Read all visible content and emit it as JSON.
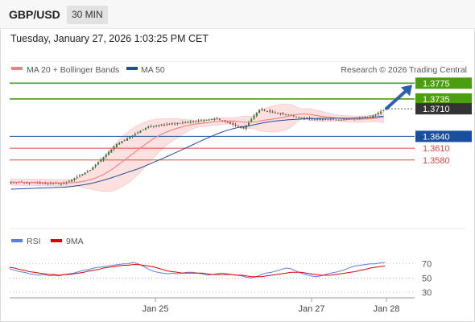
{
  "header": {
    "symbol": "GBP/USD",
    "timeframe": "30 MIN",
    "datetime": "Tuesday, January 27, 2026 1:03:25 PM CET"
  },
  "legend": {
    "bb_label": "MA 20 + Bollinger Bands",
    "ma50_label": "MA 50",
    "credit": "Research © 2026 Trading Central",
    "rsi_label": "RSI",
    "rsi_ma_label": "9MA"
  },
  "colors": {
    "resistance": "#4a9e10",
    "pivot": "#1a4fa0",
    "support": "#e04545",
    "last": "#333333",
    "candle_up": "#2e7d32",
    "candle_down": "#c62828",
    "ma20": "#f08080",
    "ma50": "#1f4e9a",
    "band_fill": "#fde0e0",
    "rsi": "#5b7fe0",
    "rsi_ma": "#e00000"
  },
  "chart_data": [
    {
      "type": "candlestick",
      "title": "GBP/USD",
      "ylim": [
        1.341,
        1.379
      ],
      "x_ticks": [
        "Jan 25",
        "Jan 27",
        "Jan 28"
      ],
      "levels": [
        {
          "label": "1.3775",
          "value": 1.3775,
          "kind": "resistance"
        },
        {
          "label": "1.3735",
          "value": 1.3735,
          "kind": "resistance"
        },
        {
          "label": "1.3710",
          "value": 1.371,
          "kind": "last"
        },
        {
          "label": "1.3640",
          "value": 1.364,
          "kind": "pivot"
        },
        {
          "label": "1.3610",
          "value": 1.361,
          "kind": "support"
        },
        {
          "label": "1.3580",
          "value": 1.358,
          "kind": "support"
        }
      ],
      "series": [
        {
          "name": "MA 20 + Bollinger Bands",
          "kind": "ma20_with_bands"
        },
        {
          "name": "MA 50",
          "kind": "ma50"
        }
      ],
      "segments": [
        {
          "n": 20,
          "start": 1.3524,
          "end": 1.352
        },
        {
          "n": 10,
          "start": 1.352,
          "end": 1.3555
        },
        {
          "n": 10,
          "start": 1.3555,
          "end": 1.362
        },
        {
          "n": 12,
          "start": 1.362,
          "end": 1.3665
        },
        {
          "n": 26,
          "start": 1.3665,
          "end": 1.3685
        },
        {
          "n": 10,
          "start": 1.3685,
          "end": 1.366
        },
        {
          "n": 6,
          "start": 1.366,
          "end": 1.3708
        },
        {
          "n": 18,
          "start": 1.3708,
          "end": 1.3685
        },
        {
          "n": 14,
          "start": 1.3685,
          "end": 1.3682
        },
        {
          "n": 10,
          "start": 1.3682,
          "end": 1.369
        },
        {
          "n": 6,
          "start": 1.369,
          "end": 1.371
        }
      ]
    },
    {
      "type": "line",
      "title": "RSI",
      "ylim": [
        20,
        90
      ],
      "y_ticks": [
        70,
        50,
        30
      ],
      "series": [
        {
          "name": "RSI",
          "values": [
            63,
            61,
            59,
            58,
            56,
            55,
            54,
            55,
            53,
            54,
            53,
            55,
            56,
            57,
            59,
            61,
            62,
            64,
            65,
            66,
            67,
            68,
            69,
            70,
            70,
            72,
            70,
            67,
            63,
            60,
            58,
            57,
            56,
            57,
            56,
            57,
            58,
            58,
            57,
            56,
            54,
            55,
            56,
            57,
            56,
            55,
            54,
            53,
            51,
            50,
            52,
            55,
            57,
            58,
            60,
            62,
            64,
            63,
            60,
            57,
            55,
            53,
            52,
            53,
            55,
            57,
            58,
            60,
            62,
            65,
            67,
            68,
            69,
            70,
            70,
            71,
            72
          ]
        },
        {
          "name": "9MA",
          "values": [
            65,
            64,
            62,
            61,
            59,
            58,
            57,
            56,
            55,
            55,
            54,
            55,
            55,
            56,
            57,
            58,
            60,
            61,
            62,
            64,
            65,
            66,
            67,
            68,
            68,
            69,
            69,
            68,
            67,
            66,
            64,
            62,
            60,
            59,
            58,
            57,
            57,
            57,
            57,
            57,
            56,
            55,
            55,
            55,
            55,
            55,
            54,
            54,
            53,
            52,
            52,
            52,
            53,
            54,
            55,
            56,
            57,
            58,
            58,
            58,
            57,
            56,
            55,
            54,
            54,
            54,
            55,
            56,
            57,
            58,
            59,
            61,
            62,
            64,
            65,
            66,
            67
          ]
        }
      ]
    }
  ]
}
